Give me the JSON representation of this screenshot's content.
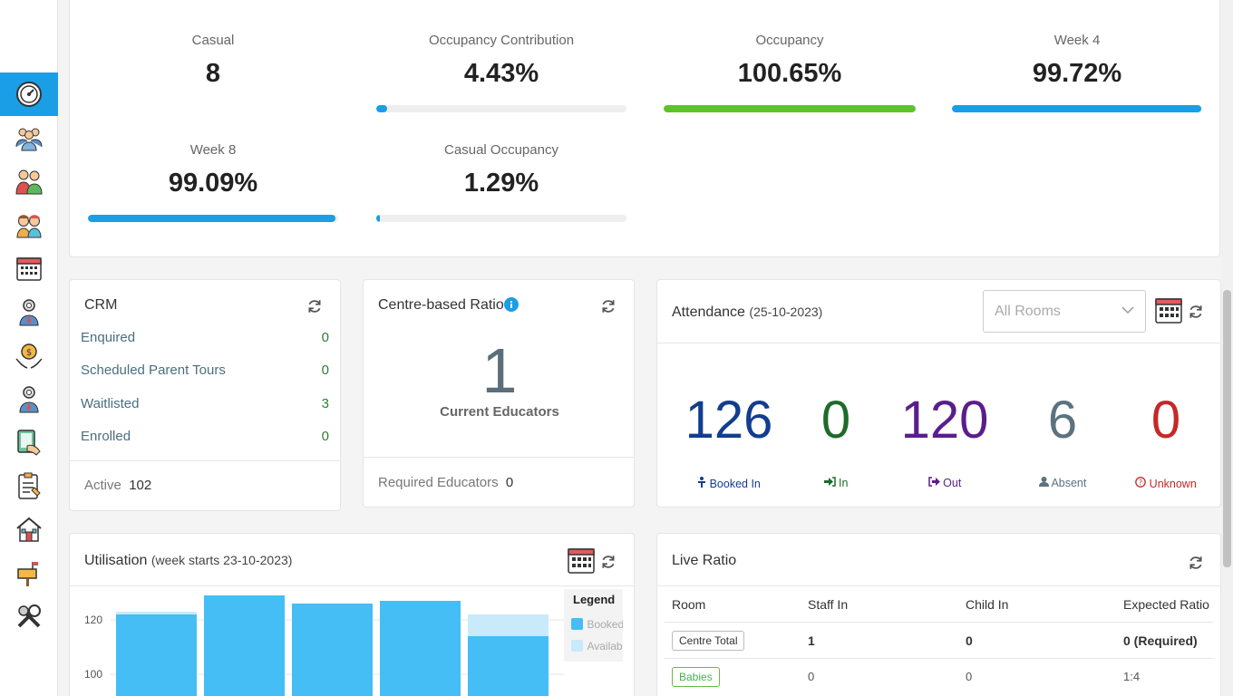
{
  "sidebar": {
    "items": [
      {
        "icon": "dashboard-gauge-icon",
        "active": true
      },
      {
        "icon": "staff-group-icon"
      },
      {
        "icon": "families-icon"
      },
      {
        "icon": "children-icon"
      },
      {
        "icon": "calendar-icon"
      },
      {
        "icon": "settings-person-icon"
      },
      {
        "icon": "finance-hand-icon"
      },
      {
        "icon": "admin-person-icon"
      },
      {
        "icon": "tablet-icon"
      },
      {
        "icon": "clipboard-checklist-icon"
      },
      {
        "icon": "house-icon"
      },
      {
        "icon": "mailbox-icon"
      },
      {
        "icon": "tools-icon"
      }
    ]
  },
  "kpis": {
    "casual": {
      "label": "Casual",
      "value": "8"
    },
    "occupancy_contribution": {
      "label": "Occupancy Contribution",
      "value": "4.43%",
      "progress": 4.43,
      "color": "#1a9ee5"
    },
    "occupancy": {
      "label": "Occupancy",
      "value": "100.65%",
      "progress": 100,
      "color": "#5cc42a"
    },
    "week4": {
      "label": "Week 4",
      "value": "99.72%",
      "progress": 99.72,
      "color": "#1a9ee5"
    },
    "week8": {
      "label": "Week 8",
      "value": "99.09%",
      "progress": 99.09,
      "color": "#1a9ee5"
    },
    "casual_occupancy": {
      "label": "Casual Occupancy",
      "value": "1.29%",
      "progress": 1.29,
      "color": "#1a9ee5"
    }
  },
  "crm": {
    "title": "CRM",
    "rows": [
      {
        "label": "Enquired",
        "value": "0"
      },
      {
        "label": "Scheduled Parent Tours",
        "value": "0"
      },
      {
        "label": "Waitlisted",
        "value": "3"
      },
      {
        "label": "Enrolled",
        "value": "0"
      }
    ],
    "footer_label": "Active",
    "footer_value": "102"
  },
  "ratio": {
    "title": "Centre-based Ratio",
    "number": "1",
    "caption": "Current Educators",
    "footer_label": "Required Educators",
    "footer_value": "0"
  },
  "attendance": {
    "title": "Attendance",
    "date": "(25-10-2023)",
    "room_select": "All Rooms",
    "stats": [
      {
        "value": "126",
        "label": "Booked In",
        "color": "#133d8e",
        "icon": "person-icon"
      },
      {
        "value": "0",
        "label": "In",
        "color": "#1e6b2a",
        "icon": "sign-in-icon"
      },
      {
        "value": "120",
        "label": "Out",
        "color": "#5a1e8c",
        "icon": "sign-out-icon"
      },
      {
        "value": "6",
        "label": "Absent",
        "color": "#5b7280",
        "icon": "user-icon"
      },
      {
        "value": "0",
        "label": "Unknown",
        "color": "#c62828",
        "icon": "question-circle-icon"
      }
    ]
  },
  "utilisation": {
    "title": "Utilisation",
    "subtitle": "(week starts 23-10-2023)",
    "legend_title": "Legend",
    "legend": [
      "Booked",
      "Available"
    ]
  },
  "chart_data": {
    "type": "bar",
    "stacked": true,
    "y_ticks": [
      100,
      120
    ],
    "series": [
      {
        "name": "Booked",
        "color": "#45bdf5",
        "values": [
          122,
          129,
          126,
          127,
          114
        ]
      },
      {
        "name": "Available",
        "color": "#c8eafb",
        "values": [
          1,
          0,
          0,
          0,
          8
        ]
      }
    ]
  },
  "live_ratio": {
    "title": "Live Ratio",
    "headers": [
      "Room",
      "Staff In",
      "Child In",
      "Expected Ratio"
    ],
    "rows": [
      {
        "room": "Centre Total",
        "staff": "1",
        "child": "0",
        "ratio": "0 (Required)"
      },
      {
        "room": "Babies",
        "staff": "0",
        "child": "0",
        "ratio": "1:4"
      }
    ]
  }
}
